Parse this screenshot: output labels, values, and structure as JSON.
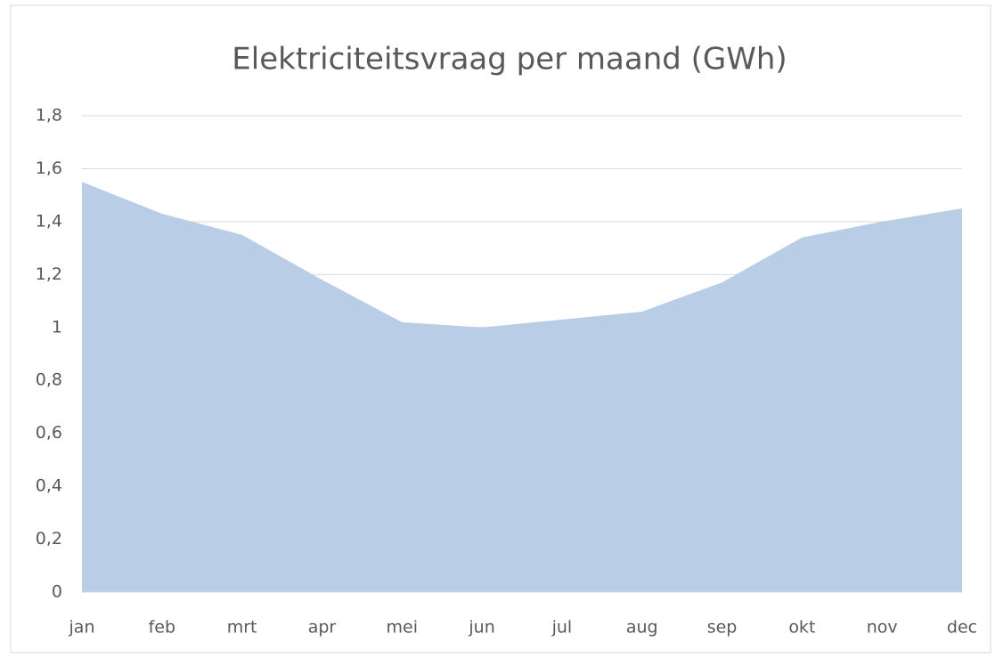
{
  "chart_data": {
    "type": "area",
    "title": "Elektriciteitsvraag per maand (GWh)",
    "categories": [
      "jan",
      "feb",
      "mrt",
      "apr",
      "mei",
      "jun",
      "jul",
      "aug",
      "sep",
      "okt",
      "nov",
      "dec"
    ],
    "values": [
      1.55,
      1.43,
      1.35,
      1.18,
      1.02,
      1.0,
      1.03,
      1.06,
      1.17,
      1.34,
      1.4,
      1.45
    ],
    "color": "#b9cde7",
    "ylim": [
      0,
      1.8
    ],
    "yticks": [
      0,
      {
        "value": 0.2,
        "label": "0,2"
      },
      {
        "value": 0.4,
        "label": "0,4"
      },
      {
        "value": 0.6,
        "label": "0,6"
      },
      {
        "value": 0.8,
        "label": "0,8"
      },
      1,
      {
        "value": 1.2,
        "label": "1,2"
      },
      {
        "value": 1.4,
        "label": "1,4"
      },
      {
        "value": 1.6,
        "label": "1,6"
      },
      {
        "value": 1.8,
        "label": "1,8"
      }
    ],
    "grid": true
  }
}
